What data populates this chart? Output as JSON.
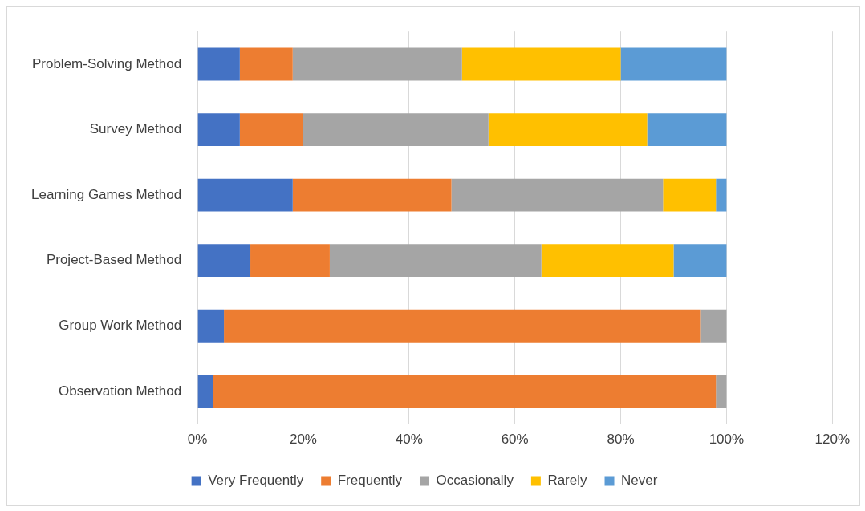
{
  "chart_data": {
    "type": "bar",
    "orientation": "horizontal",
    "stacked": true,
    "categories": [
      "Problem-Solving Method",
      "Survey Method",
      "Learning Games Method",
      "Project-Based Method",
      "Group Work Method",
      "Observation Method"
    ],
    "series": [
      {
        "name": "Very Frequently",
        "color": "#4472c4",
        "values": [
          8,
          8,
          18,
          10,
          5,
          3
        ]
      },
      {
        "name": "Frequently",
        "color": "#ed7d31",
        "values": [
          10,
          12,
          30,
          15,
          90,
          95
        ]
      },
      {
        "name": "Occasionally",
        "color": "#a5a5a5",
        "values": [
          32,
          35,
          40,
          40,
          5,
          2
        ]
      },
      {
        "name": "Rarely",
        "color": "#ffc000",
        "values": [
          30,
          30,
          10,
          25,
          0,
          0
        ]
      },
      {
        "name": "Never",
        "color": "#5b9bd5",
        "values": [
          20,
          15,
          2,
          10,
          0,
          0
        ]
      }
    ],
    "xlim": [
      0,
      120
    ],
    "xticks": [
      {
        "value": 0,
        "label": "0%"
      },
      {
        "value": 20,
        "label": "20%"
      },
      {
        "value": 40,
        "label": "40%"
      },
      {
        "value": 60,
        "label": "60%"
      },
      {
        "value": 80,
        "label": "80%"
      },
      {
        "value": 100,
        "label": "100%"
      },
      {
        "value": 120,
        "label": "120%"
      }
    ],
    "grid": "x",
    "legend": "bottom"
  }
}
